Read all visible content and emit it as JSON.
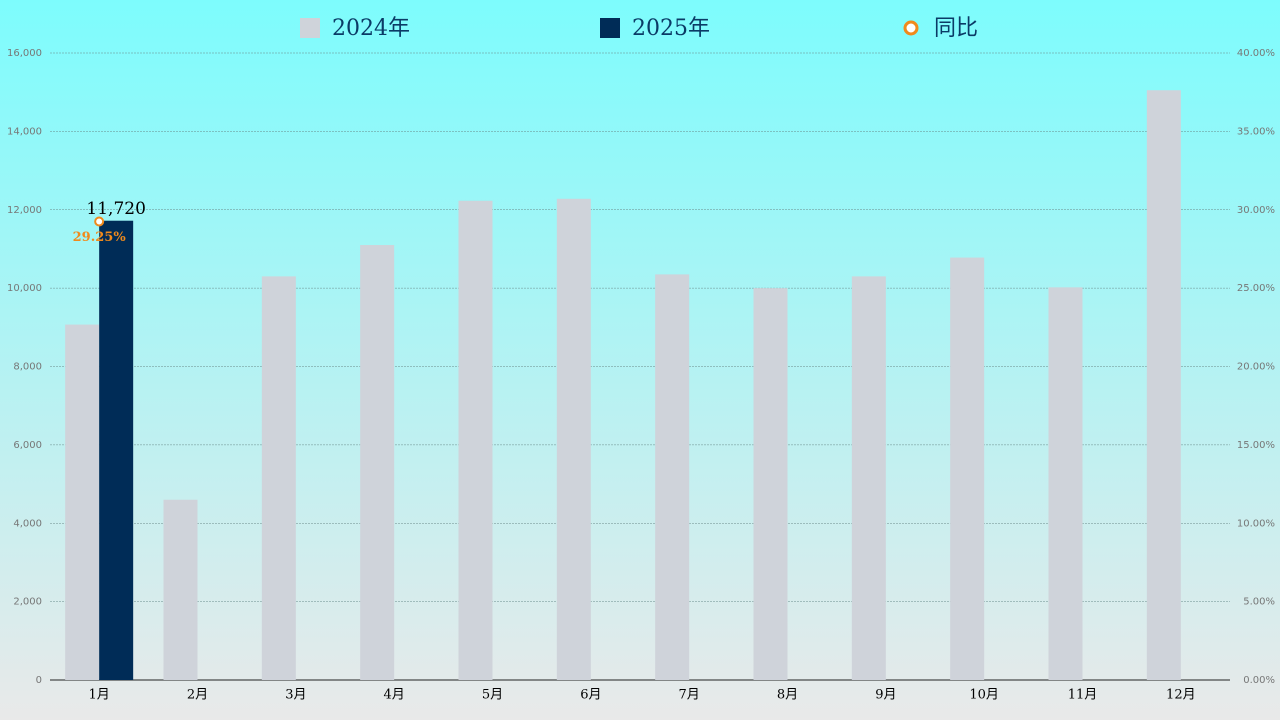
{
  "chart_data": {
    "type": "bar-line",
    "categories": [
      "1月",
      "2月",
      "3月",
      "4月",
      "5月",
      "6月",
      "7月",
      "8月",
      "9月",
      "10月",
      "11月",
      "12月"
    ],
    "series": [
      {
        "name": "2024年",
        "color": "#cfd3da",
        "type": "bar",
        "values": [
          9070,
          4600,
          10300,
          11100,
          12230,
          12280,
          10350,
          10000,
          10300,
          10780,
          10020,
          15050
        ]
      },
      {
        "name": "2025年",
        "color": "#002c57",
        "type": "bar",
        "values": [
          11720,
          null,
          null,
          null,
          null,
          null,
          null,
          null,
          null,
          null,
          null,
          null
        ],
        "value_labels": [
          "11,720",
          null,
          null,
          null,
          null,
          null,
          null,
          null,
          null,
          null,
          null,
          null
        ]
      },
      {
        "name": "同比",
        "color": "#f08a1c",
        "type": "line",
        "axis": "y2",
        "values": [
          29.25,
          null,
          null,
          null,
          null,
          null,
          null,
          null,
          null,
          null,
          null,
          null
        ],
        "value_labels": [
          "29.25%",
          null,
          null,
          null,
          null,
          null,
          null,
          null,
          null,
          null,
          null,
          null
        ]
      }
    ],
    "ylim": [
      0,
      16000
    ],
    "yticks": [
      0,
      {
        "value": 2000,
        "label": "2,000"
      },
      {
        "value": 4000,
        "label": "4,000"
      },
      {
        "value": 6000,
        "label": "6,000"
      },
      {
        "value": 8000,
        "label": "8,000"
      },
      {
        "value": 10000,
        "label": "10,000"
      },
      {
        "value": 12000,
        "label": "12,000"
      },
      {
        "value": 14000,
        "label": "14,000"
      },
      {
        "value": 16000,
        "label": "16,000"
      }
    ],
    "y2lim": [
      0,
      40
    ],
    "y2ticks": [
      {
        "value": 0,
        "label": "0.00%"
      },
      {
        "value": 5,
        "label": "5.00%"
      },
      {
        "value": 10,
        "label": "10.00%"
      },
      {
        "value": 15,
        "label": "15.00%"
      },
      {
        "value": 20,
        "label": "20.00%"
      },
      {
        "value": 25,
        "label": "25.00%"
      },
      {
        "value": 30,
        "label": "30.00%"
      },
      {
        "value": 35,
        "label": "35.00%"
      },
      {
        "value": 40,
        "label": "40.00%"
      }
    ],
    "grid": true,
    "legend": "top"
  }
}
